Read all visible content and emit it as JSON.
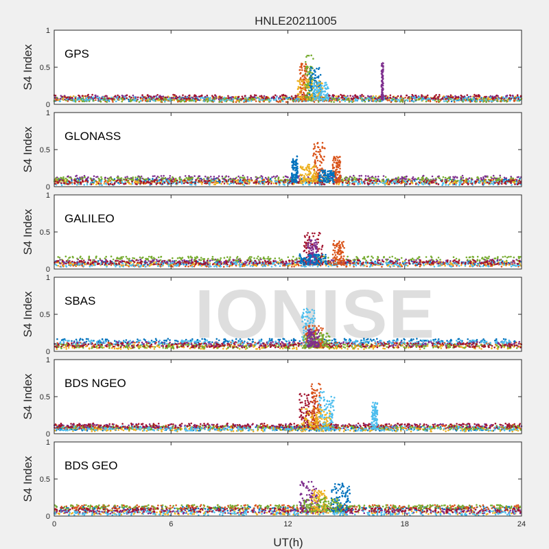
{
  "figure": {
    "title": "HNLE20211005",
    "xlabel": "UT(h)",
    "watermark": "IONISE",
    "watermark_panel": 3
  },
  "chart_data": {
    "type": "scatter",
    "x_ticks": [
      "0",
      "6",
      "12",
      "18",
      "24"
    ],
    "xlim": [
      0,
      24
    ],
    "ylim": [
      0,
      1
    ],
    "y_ticks": [
      "0",
      "0.5",
      "1"
    ],
    "ylabel": "S4 Index",
    "grid": false,
    "series_colors": [
      "#0072BD",
      "#D95319",
      "#EDB120",
      "#7E2F8E",
      "#77AC30",
      "#4DBEEE",
      "#A2142F"
    ],
    "panels": [
      {
        "label": "GPS",
        "baseline": [
          0.07,
          0.06,
          0.08,
          0.09,
          0.06,
          0.07,
          0.1
        ],
        "events": [
          {
            "t0": 12.6,
            "t1": 13.0,
            "peak": 0.55,
            "color": 1
          },
          {
            "t0": 12.9,
            "t1": 13.3,
            "peak": 0.67,
            "color": 4
          },
          {
            "t0": 13.1,
            "t1": 13.7,
            "peak": 0.5,
            "color": 0
          },
          {
            "t0": 12.5,
            "t1": 13.8,
            "peak": 0.35,
            "color": 2
          },
          {
            "t0": 13.3,
            "t1": 14.1,
            "peak": 0.3,
            "color": 5
          },
          {
            "t0": 16.8,
            "t1": 16.9,
            "peak": 0.56,
            "color": 3
          }
        ]
      },
      {
        "label": "GLONASS",
        "baseline": [
          0.08,
          0.07,
          0.06,
          0.12,
          0.1,
          0.05,
          0.06
        ],
        "events": [
          {
            "t0": 13.3,
            "t1": 13.9,
            "peak": 0.6,
            "color": 1
          },
          {
            "t0": 14.3,
            "t1": 14.7,
            "peak": 0.42,
            "color": 1
          },
          {
            "t0": 12.2,
            "t1": 12.5,
            "peak": 0.42,
            "color": 0
          },
          {
            "t0": 12.6,
            "t1": 13.5,
            "peak": 0.3,
            "color": 2
          },
          {
            "t0": 13.6,
            "t1": 14.4,
            "peak": 0.22,
            "color": 0
          }
        ]
      },
      {
        "label": "GALILEO",
        "baseline": [
          0.08,
          0.06,
          0.07,
          0.1,
          0.14,
          0.06,
          0.09
        ],
        "events": [
          {
            "t0": 12.8,
            "t1": 13.8,
            "peak": 0.5,
            "color": 6
          },
          {
            "t0": 13.0,
            "t1": 13.5,
            "peak": 0.4,
            "color": 3
          },
          {
            "t0": 14.3,
            "t1": 14.9,
            "peak": 0.38,
            "color": 1
          },
          {
            "t0": 12.6,
            "t1": 14.0,
            "peak": 0.2,
            "color": 0
          }
        ]
      },
      {
        "label": "SBAS",
        "baseline": [
          0.14,
          0.09,
          0.06,
          0.1,
          0.07,
          0.12,
          0.08
        ],
        "events": [
          {
            "t0": 12.7,
            "t1": 13.4,
            "peak": 0.58,
            "color": 5
          },
          {
            "t0": 12.9,
            "t1": 13.8,
            "peak": 0.35,
            "color": 1
          },
          {
            "t0": 12.8,
            "t1": 14.2,
            "peak": 0.25,
            "color": 4
          },
          {
            "t0": 13.0,
            "t1": 13.6,
            "peak": 0.3,
            "color": 3
          }
        ]
      },
      {
        "label": "BDS NGEO",
        "baseline": [
          0.07,
          0.09,
          0.06,
          0.1,
          0.08,
          0.07,
          0.11
        ],
        "events": [
          {
            "t0": 12.6,
            "t1": 13.4,
            "peak": 0.55,
            "color": 6
          },
          {
            "t0": 13.2,
            "t1": 13.7,
            "peak": 0.68,
            "color": 1
          },
          {
            "t0": 13.6,
            "t1": 14.4,
            "peak": 0.57,
            "color": 5
          },
          {
            "t0": 12.7,
            "t1": 14.2,
            "peak": 0.35,
            "color": 2
          },
          {
            "t0": 16.3,
            "t1": 16.6,
            "peak": 0.42,
            "color": 5
          }
        ]
      },
      {
        "label": "BDS GEO",
        "baseline": [
          0.1,
          0.12,
          0.05,
          0.06,
          0.12,
          0.04,
          0.08
        ],
        "events": [
          {
            "t0": 12.6,
            "t1": 13.6,
            "peak": 0.47,
            "color": 3
          },
          {
            "t0": 13.2,
            "t1": 14.0,
            "peak": 0.35,
            "color": 2
          },
          {
            "t0": 14.2,
            "t1": 15.2,
            "peak": 0.45,
            "color": 0
          },
          {
            "t0": 12.8,
            "t1": 14.8,
            "peak": 0.25,
            "color": 4
          }
        ]
      }
    ]
  }
}
